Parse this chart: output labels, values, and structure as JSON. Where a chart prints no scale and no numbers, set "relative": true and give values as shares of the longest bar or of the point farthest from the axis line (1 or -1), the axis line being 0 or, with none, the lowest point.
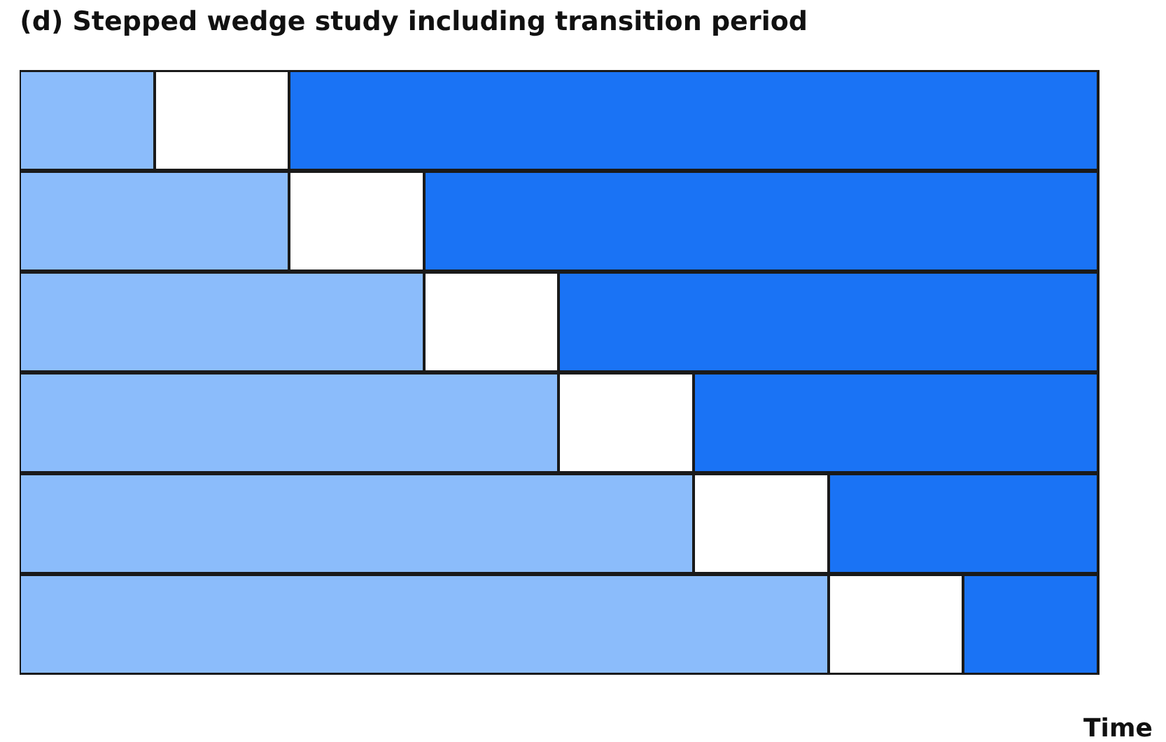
{
  "chart_data": {
    "type": "bar",
    "title": "(d) Stepped wedge study including transition period",
    "xlabel": "Time",
    "orientation": "horizontal",
    "stacked": true,
    "relative": true,
    "categories": [
      null,
      null,
      null,
      null,
      null,
      null
    ],
    "series": [
      {
        "color": "#8bbcfb",
        "values": [
          0.125,
          0.25,
          0.375,
          0.5,
          0.625,
          0.75
        ]
      },
      {
        "color": "#ffffff",
        "values": [
          0.125,
          0.125,
          0.125,
          0.125,
          0.125,
          0.125
        ]
      },
      {
        "color": "#1a73f5",
        "values": [
          0.75,
          0.625,
          0.5,
          0.375,
          0.25,
          0.125
        ]
      }
    ]
  }
}
